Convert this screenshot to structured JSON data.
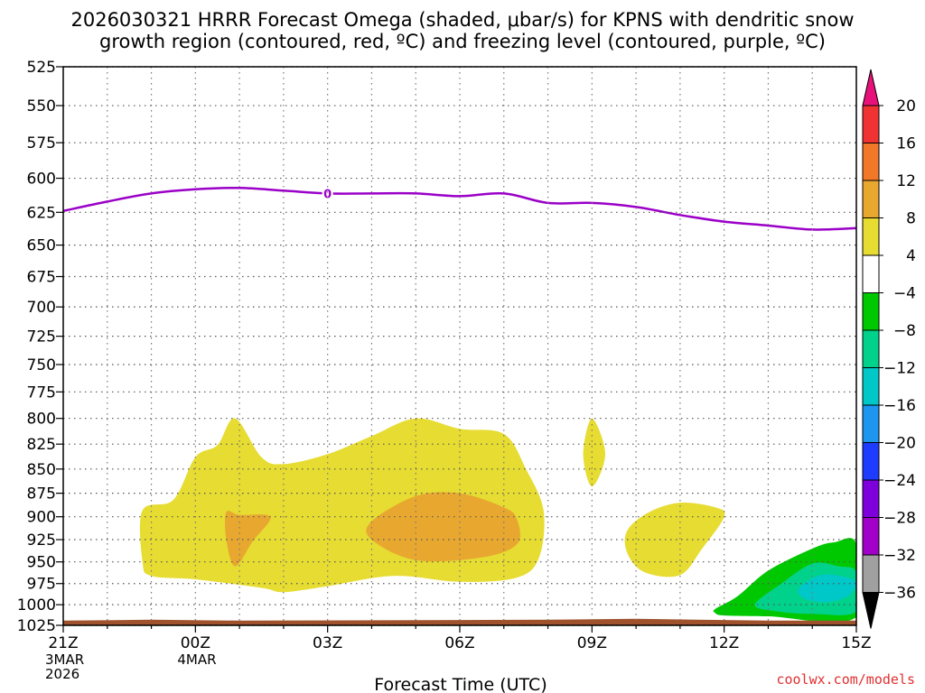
{
  "chart_data": {
    "type": "contour",
    "title_line1": "2026030321 HRRR Forecast Omega (shaded, μbar/s) for KPNS with dendritic snow",
    "title_line2": "growth region (contoured, red, ºC) and freezing level (contoured, purple, ºC)",
    "xlabel": "Forecast Time (UTC)",
    "y_ticks": [
      "525",
      "550",
      "575",
      "600",
      "625",
      "650",
      "675",
      "700",
      "725",
      "750",
      "775",
      "800",
      "825",
      "850",
      "875",
      "900",
      "925",
      "950",
      "975",
      "1000",
      "1025"
    ],
    "y_values": [
      525,
      550,
      575,
      600,
      625,
      650,
      675,
      700,
      725,
      750,
      775,
      800,
      825,
      850,
      875,
      900,
      925,
      950,
      975,
      1000,
      1025
    ],
    "ylim": [
      525,
      1025
    ],
    "y_scale": "log-pressure",
    "x_ticks": [
      {
        "hour": 0,
        "label": "21Z",
        "sub": [
          "3MAR",
          "2026"
        ]
      },
      {
        "hour": 3,
        "label": "00Z",
        "sub": [
          "4MAR"
        ]
      },
      {
        "hour": 6,
        "label": "03Z",
        "sub": []
      },
      {
        "hour": 9,
        "label": "06Z",
        "sub": []
      },
      {
        "hour": 12,
        "label": "09Z",
        "sub": []
      },
      {
        "hour": 15,
        "label": "12Z",
        "sub": []
      },
      {
        "hour": 18,
        "label": "15Z",
        "sub": []
      }
    ],
    "xlim": [
      0,
      18
    ],
    "grid": true,
    "colorbar": {
      "labels": [
        "20",
        "16",
        "12",
        "8",
        "4",
        "−4",
        "−8",
        "−12",
        "−16",
        "−20",
        "−24",
        "−28",
        "−32",
        "−36"
      ],
      "colors_top_to_bottom": [
        "#e8107a",
        "#f03232",
        "#f07828",
        "#e8a830",
        "#e6dc32",
        "#ffffff",
        "#00c800",
        "#00d28c",
        "#00c8c8",
        "#1e96f0",
        "#1e3cff",
        "#7d00dc",
        "#a000c8",
        "#a0a0a0",
        "#000000"
      ]
    },
    "freezing_level": {
      "label": "0",
      "color": "#9b00c8",
      "hours": [
        0,
        1,
        2,
        3,
        4,
        5,
        6,
        7,
        8,
        9,
        10,
        11,
        12,
        13,
        14,
        15,
        16,
        17,
        18
      ],
      "pressure": [
        624,
        617,
        611,
        608,
        607,
        609,
        611,
        611,
        611,
        613,
        611,
        618,
        618,
        621,
        627,
        632,
        635,
        638,
        637
      ]
    },
    "omega_regions": [
      {
        "value_range": "4 to 8",
        "color": "#e6dc32",
        "points": [
          [
            1.8,
            893
          ],
          [
            2.5,
            882
          ],
          [
            3.0,
            838
          ],
          [
            3.5,
            826
          ],
          [
            3.9,
            800
          ],
          [
            4.5,
            838
          ],
          [
            5.0,
            845
          ],
          [
            6.0,
            835
          ],
          [
            7.0,
            817
          ],
          [
            8.0,
            800
          ],
          [
            9.0,
            810
          ],
          [
            10.0,
            815
          ],
          [
            10.5,
            850
          ],
          [
            10.9,
            893
          ],
          [
            10.8,
            945
          ],
          [
            10.3,
            968
          ],
          [
            9.0,
            973
          ],
          [
            7.5,
            966
          ],
          [
            6.0,
            978
          ],
          [
            5.0,
            985
          ],
          [
            4.5,
            980
          ],
          [
            3.0,
            970
          ],
          [
            2.0,
            966
          ],
          [
            1.8,
            950
          ]
        ]
      },
      {
        "value_range": "8 to 12",
        "color": "#e8a830",
        "points": [
          [
            4.0,
            898
          ],
          [
            4.7,
            900
          ],
          [
            4.3,
            927
          ],
          [
            3.9,
            955
          ],
          [
            3.7,
            925
          ],
          [
            3.7,
            895
          ]
        ]
      },
      {
        "value_range": "8 to 12",
        "color": "#e8a830",
        "points": [
          [
            7.0,
            905
          ],
          [
            8.0,
            878
          ],
          [
            9.0,
            875
          ],
          [
            10.0,
            890
          ],
          [
            10.3,
            903
          ],
          [
            10.3,
            930
          ],
          [
            9.5,
            945
          ],
          [
            8.0,
            948
          ],
          [
            7.0,
            925
          ]
        ]
      },
      {
        "value_range": "4 to 8",
        "color": "#e6dc32",
        "points": [
          [
            12.0,
            800
          ],
          [
            12.3,
            835
          ],
          [
            12.0,
            868
          ],
          [
            11.8,
            835
          ]
        ]
      },
      {
        "value_range": "4 to 8",
        "color": "#e6dc32",
        "points": [
          [
            12.8,
            915
          ],
          [
            13.3,
            895
          ],
          [
            14.0,
            885
          ],
          [
            14.8,
            890
          ],
          [
            15.0,
            900
          ],
          [
            14.5,
            935
          ],
          [
            14.0,
            965
          ],
          [
            13.2,
            962
          ],
          [
            12.8,
            940
          ]
        ]
      },
      {
        "value_range": "-4 to -8",
        "color": "#00c800",
        "points": [
          [
            14.8,
            1005
          ],
          [
            15.3,
            990
          ],
          [
            16.0,
            960
          ],
          [
            17.0,
            935
          ],
          [
            17.5,
            928
          ],
          [
            18.0,
            930
          ],
          [
            18.0,
            1015
          ],
          [
            16.0,
            1014
          ],
          [
            15.0,
            1013
          ],
          [
            14.8,
            1010
          ]
        ]
      },
      {
        "value_range": "-8 to -12",
        "color": "#00d28c",
        "points": [
          [
            15.7,
            1000
          ],
          [
            16.3,
            975
          ],
          [
            17.0,
            952
          ],
          [
            17.6,
            955
          ],
          [
            18.0,
            962
          ],
          [
            18.0,
            1008
          ],
          [
            17.0,
            1011
          ],
          [
            16.2,
            1008
          ]
        ]
      },
      {
        "value_range": "-12 to -16",
        "color": "#00c8c8",
        "points": [
          [
            16.7,
            980
          ],
          [
            17.2,
            965
          ],
          [
            17.8,
            968
          ],
          [
            18.0,
            975
          ],
          [
            17.8,
            990
          ],
          [
            17.3,
            997
          ],
          [
            16.8,
            992
          ]
        ]
      }
    ],
    "surface": {
      "color": "#a0522d",
      "pressure": 1017
    }
  },
  "credit": "coolwx.com/models"
}
